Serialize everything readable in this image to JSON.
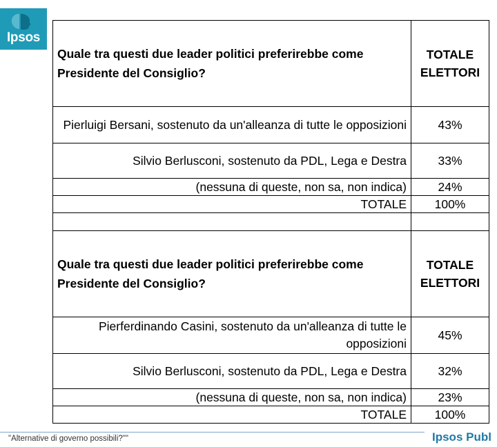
{
  "brand": {
    "logo_text": "Ipsos",
    "logo_color": "#1f9bb7",
    "footer_brand": "Ipsos Publ",
    "footer_brand_color": "#1f7aa5"
  },
  "tables": [
    {
      "question": "Quale tra questi due leader politici preferirebbe come Presidente del Consiglio?",
      "column_header": "TOTALE ELETTORI",
      "rows": [
        {
          "label": "Pierluigi Bersani, sostenuto da un'alleanza di tutte le opposizioni",
          "value": "43%"
        },
        {
          "label": "Silvio Berlusconi, sostenuto da PDL, Lega e Destra",
          "value": "33%"
        },
        {
          "label": "(nessuna di queste, non sa, non indica)",
          "value": "24%"
        },
        {
          "label": "TOTALE",
          "value": "100%"
        }
      ]
    },
    {
      "question": "Quale tra questi due leader politici preferirebbe come Presidente del Consiglio?",
      "column_header": "TOTALE ELETTORI",
      "rows": [
        {
          "label": "Pierferdinando Casini, sostenuto da un'alleanza di tutte le opposizioni",
          "value": "45%"
        },
        {
          "label": "Silvio Berlusconi, sostenuto da PDL, Lega e Destra",
          "value": "32%"
        },
        {
          "label": "(nessuna di queste, non sa, non indica)",
          "value": "23%"
        },
        {
          "label": "TOTALE",
          "value": "100%"
        }
      ]
    }
  ],
  "footer": {
    "title": "\"Alternative di governo possibili?\"\""
  }
}
